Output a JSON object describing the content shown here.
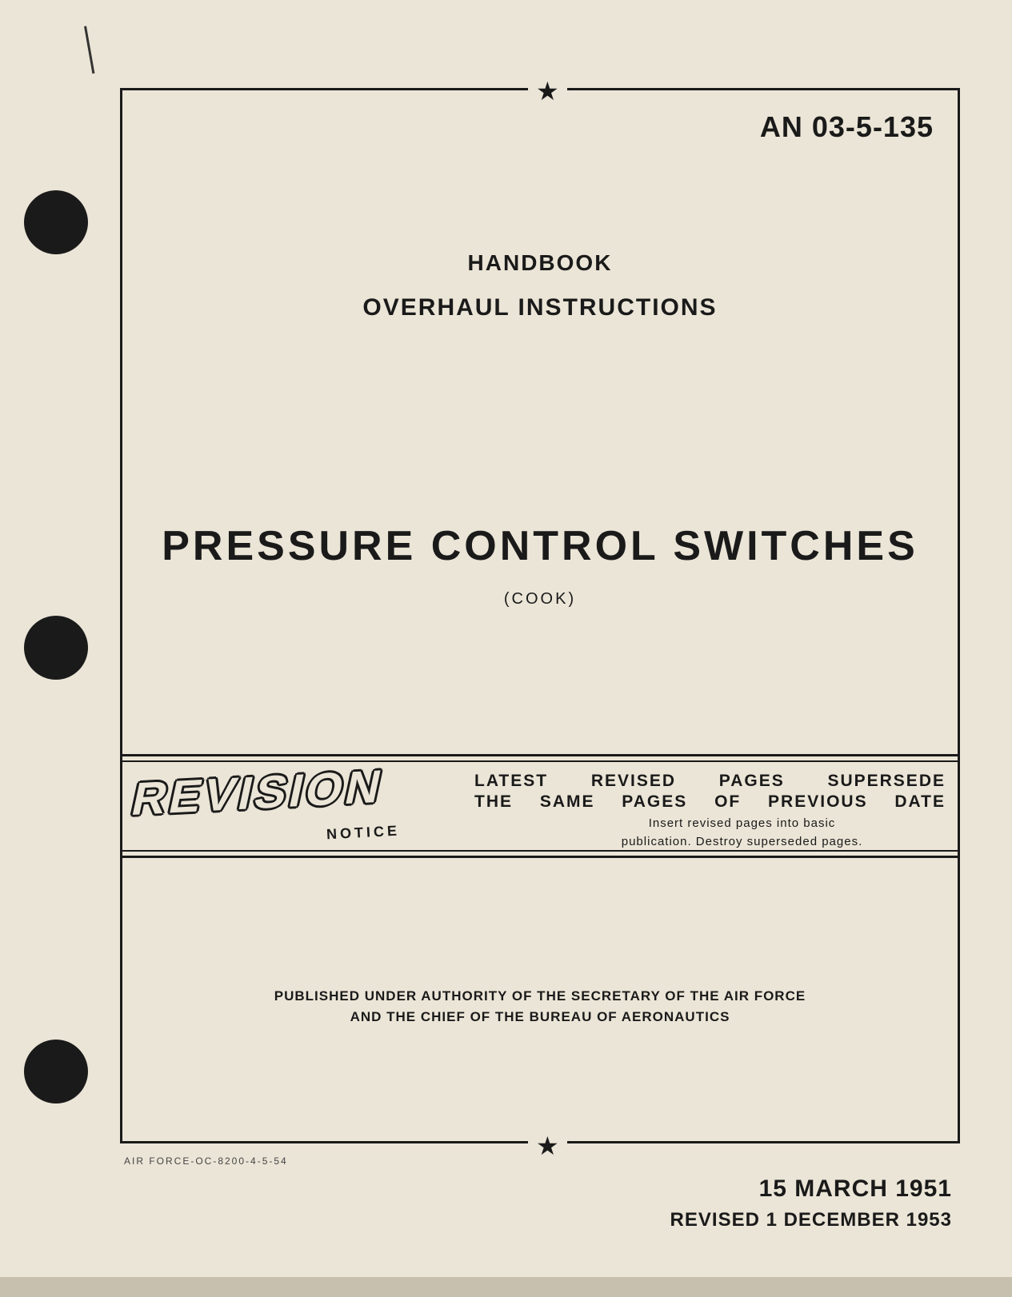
{
  "document": {
    "number": "AN 03-5-135",
    "type_line1": "HANDBOOK",
    "type_line2": "OVERHAUL INSTRUCTIONS",
    "title": "PRESSURE CONTROL SWITCHES",
    "manufacturer": "(COOK)"
  },
  "revision": {
    "word": "REVISION",
    "notice": "NOTICE",
    "line1": "LATEST REVISED PAGES SUPERSEDE",
    "line2": "THE SAME PAGES OF PREVIOUS DATE",
    "instruction1": "Insert revised pages into basic",
    "instruction2": "publication. Destroy superseded pages."
  },
  "authority": {
    "line1": "PUBLISHED UNDER AUTHORITY OF THE SECRETARY OF THE AIR FORCE",
    "line2": "AND THE CHIEF OF THE BUREAU OF AERONAUTICS"
  },
  "footer": {
    "print_code": "AIR FORCE-OC-8200-4-5-54",
    "date_original": "15 MARCH 1951",
    "date_revised": "REVISED 1 DECEMBER 1953"
  },
  "styling": {
    "page_bg": "#ebe5d7",
    "text_color": "#1a1a1a",
    "hole_color": "#1a1a1a",
    "frame_border_width": 3,
    "title_fontsize": 52,
    "doc_number_fontsize": 36,
    "handbook_fontsize": 28,
    "overhaul_fontsize": 30,
    "authority_fontsize": 17,
    "date_fontsize": 30,
    "revised_fontsize": 24
  }
}
